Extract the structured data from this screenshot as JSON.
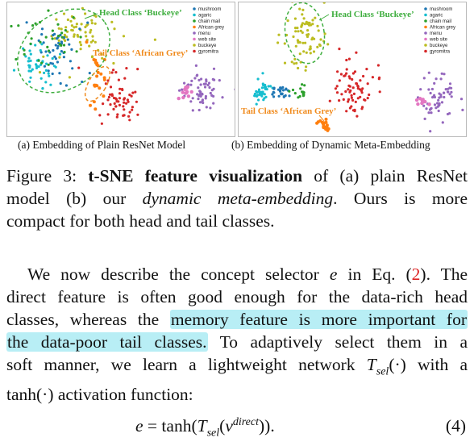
{
  "figure": {
    "legend_entries": [
      "mushroom",
      "agaric",
      "chain mail",
      "African grey",
      "menu",
      "web site",
      "buckeye",
      "gyromitra"
    ],
    "legend_colors": [
      "#1f77b4",
      "#17becf",
      "#2ca02c",
      "#ff7f0e",
      "#9467bd",
      "#e377c2",
      "#bcbd22",
      "#d62728"
    ],
    "panel_a": {
      "caption": "(a) Embedding of Plain ResNet Model",
      "head_annotation": "Head Class ‘Buckeye’",
      "tail_annotation": "Tail Class ‘African Grey’"
    },
    "panel_b": {
      "caption": "(b) Embedding of Dynamic Meta-Embedding",
      "head_annotation": "Head Class ‘Buckeye’",
      "tail_annotation": "Tail Class ‘African Grey’"
    },
    "annotation_colors": {
      "head": "#3fae3f",
      "tail": "#f08a1c"
    }
  },
  "figure_caption": {
    "label": "Figure 3:",
    "bold": "t-SNE feature visualization",
    "l1_rest": "of (a) plain ResNet",
    "l2_a": "model (b) our",
    "l2_italic": "dynamic meta-embedding",
    "l2_b": ". Ours is more",
    "l3": "compact for both head and tail classes."
  },
  "paragraph": {
    "l1_a": "We now describe the concept selector",
    "l1_var": "e",
    "l1_b": "in Eq. (",
    "l1_ref": "2",
    "l1_c": "). The",
    "l2": "direct feature is often good enough for the data-rich head",
    "l3_a": "classes, whereas the",
    "l3_highlight": "memory feature is more important for",
    "l4_highlight": "the data-poor tail classes.",
    "l4_b": "To adaptively select them in a",
    "l5_a": "soft manner, we learn a lightweight network",
    "l5_T": "T",
    "l5_sub": "sel",
    "l5_b": "(·) with a",
    "l6": "tanh(·) activation function:"
  },
  "equation": {
    "lhs": "e",
    "eq": " = tanh(",
    "T": "T",
    "sub": "sel",
    "open": "(",
    "v": "v",
    "sup": "direct",
    "close": ")).",
    "number": "(4)"
  }
}
